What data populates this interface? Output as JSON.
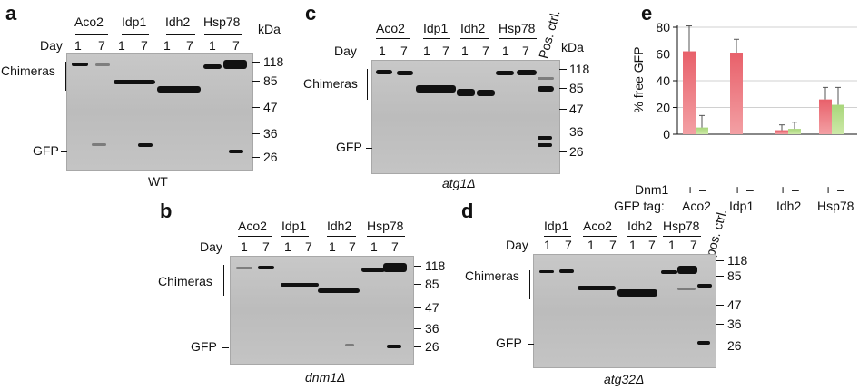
{
  "panels": {
    "a": {
      "letter": "a",
      "groups": [
        "Aco2",
        "Idp1",
        "Idh2",
        "Hsp78"
      ],
      "kda_label": "kDa",
      "day_label": "Day",
      "day1": "1",
      "day7": "7",
      "chimeras_label": "Chimeras",
      "gfp_label": "GFP",
      "markers": [
        "118",
        "85",
        "47",
        "36",
        "26"
      ],
      "strain": "WT"
    },
    "b": {
      "letter": "b",
      "groups": [
        "Aco2",
        "Idp1",
        "Idh2",
        "Hsp78"
      ],
      "day_label": "Day",
      "day1": "1",
      "day7": "7",
      "chimeras_label": "Chimeras",
      "gfp_label": "GFP",
      "markers": [
        "118",
        "85",
        "47",
        "36",
        "26"
      ],
      "strain": "dnm1Δ"
    },
    "c": {
      "letter": "c",
      "groups": [
        "Aco2",
        "Idp1",
        "Idh2",
        "Hsp78"
      ],
      "pos_ctrl": "Pos. ctrl.",
      "kda_label": "kDa",
      "day_label": "Day",
      "day1": "1",
      "day7": "7",
      "chimeras_label": "Chimeras",
      "gfp_label": "GFP",
      "markers": [
        "118",
        "85",
        "47",
        "36",
        "26"
      ],
      "strain": "atg1Δ"
    },
    "d": {
      "letter": "d",
      "groups": [
        "Idp1",
        "Aco2",
        "Idh2",
        "Hsp78"
      ],
      "pos_ctrl": "pos. ctrl.",
      "day_label": "Day",
      "day1": "1",
      "day7": "7",
      "chimeras_label": "Chimeras",
      "gfp_label": "GFP",
      "markers": [
        "118",
        "85",
        "47",
        "36",
        "26"
      ],
      "strain": "atg32Δ"
    },
    "e": {
      "letter": "e",
      "dnm1_label": "Dnm1",
      "gfp_tag_label": "GFP tag:",
      "plus": "+",
      "minus": "–"
    }
  },
  "chart_data": {
    "type": "bar",
    "ylabel": "% free GFP",
    "ylim": [
      0,
      80
    ],
    "yticks": [
      0,
      20,
      40,
      60,
      80
    ],
    "categories": [
      "Aco2",
      "Idp1",
      "Idh2",
      "Hsp78"
    ],
    "series": [
      {
        "name": "+",
        "color": "#e8606a",
        "values": [
          62,
          61,
          3,
          26
        ],
        "errors": [
          19,
          10,
          4,
          9
        ]
      },
      {
        "name": "–",
        "color": "#a8d67a",
        "values": [
          5,
          null,
          4,
          22
        ],
        "errors": [
          9,
          null,
          5,
          13
        ]
      }
    ]
  }
}
